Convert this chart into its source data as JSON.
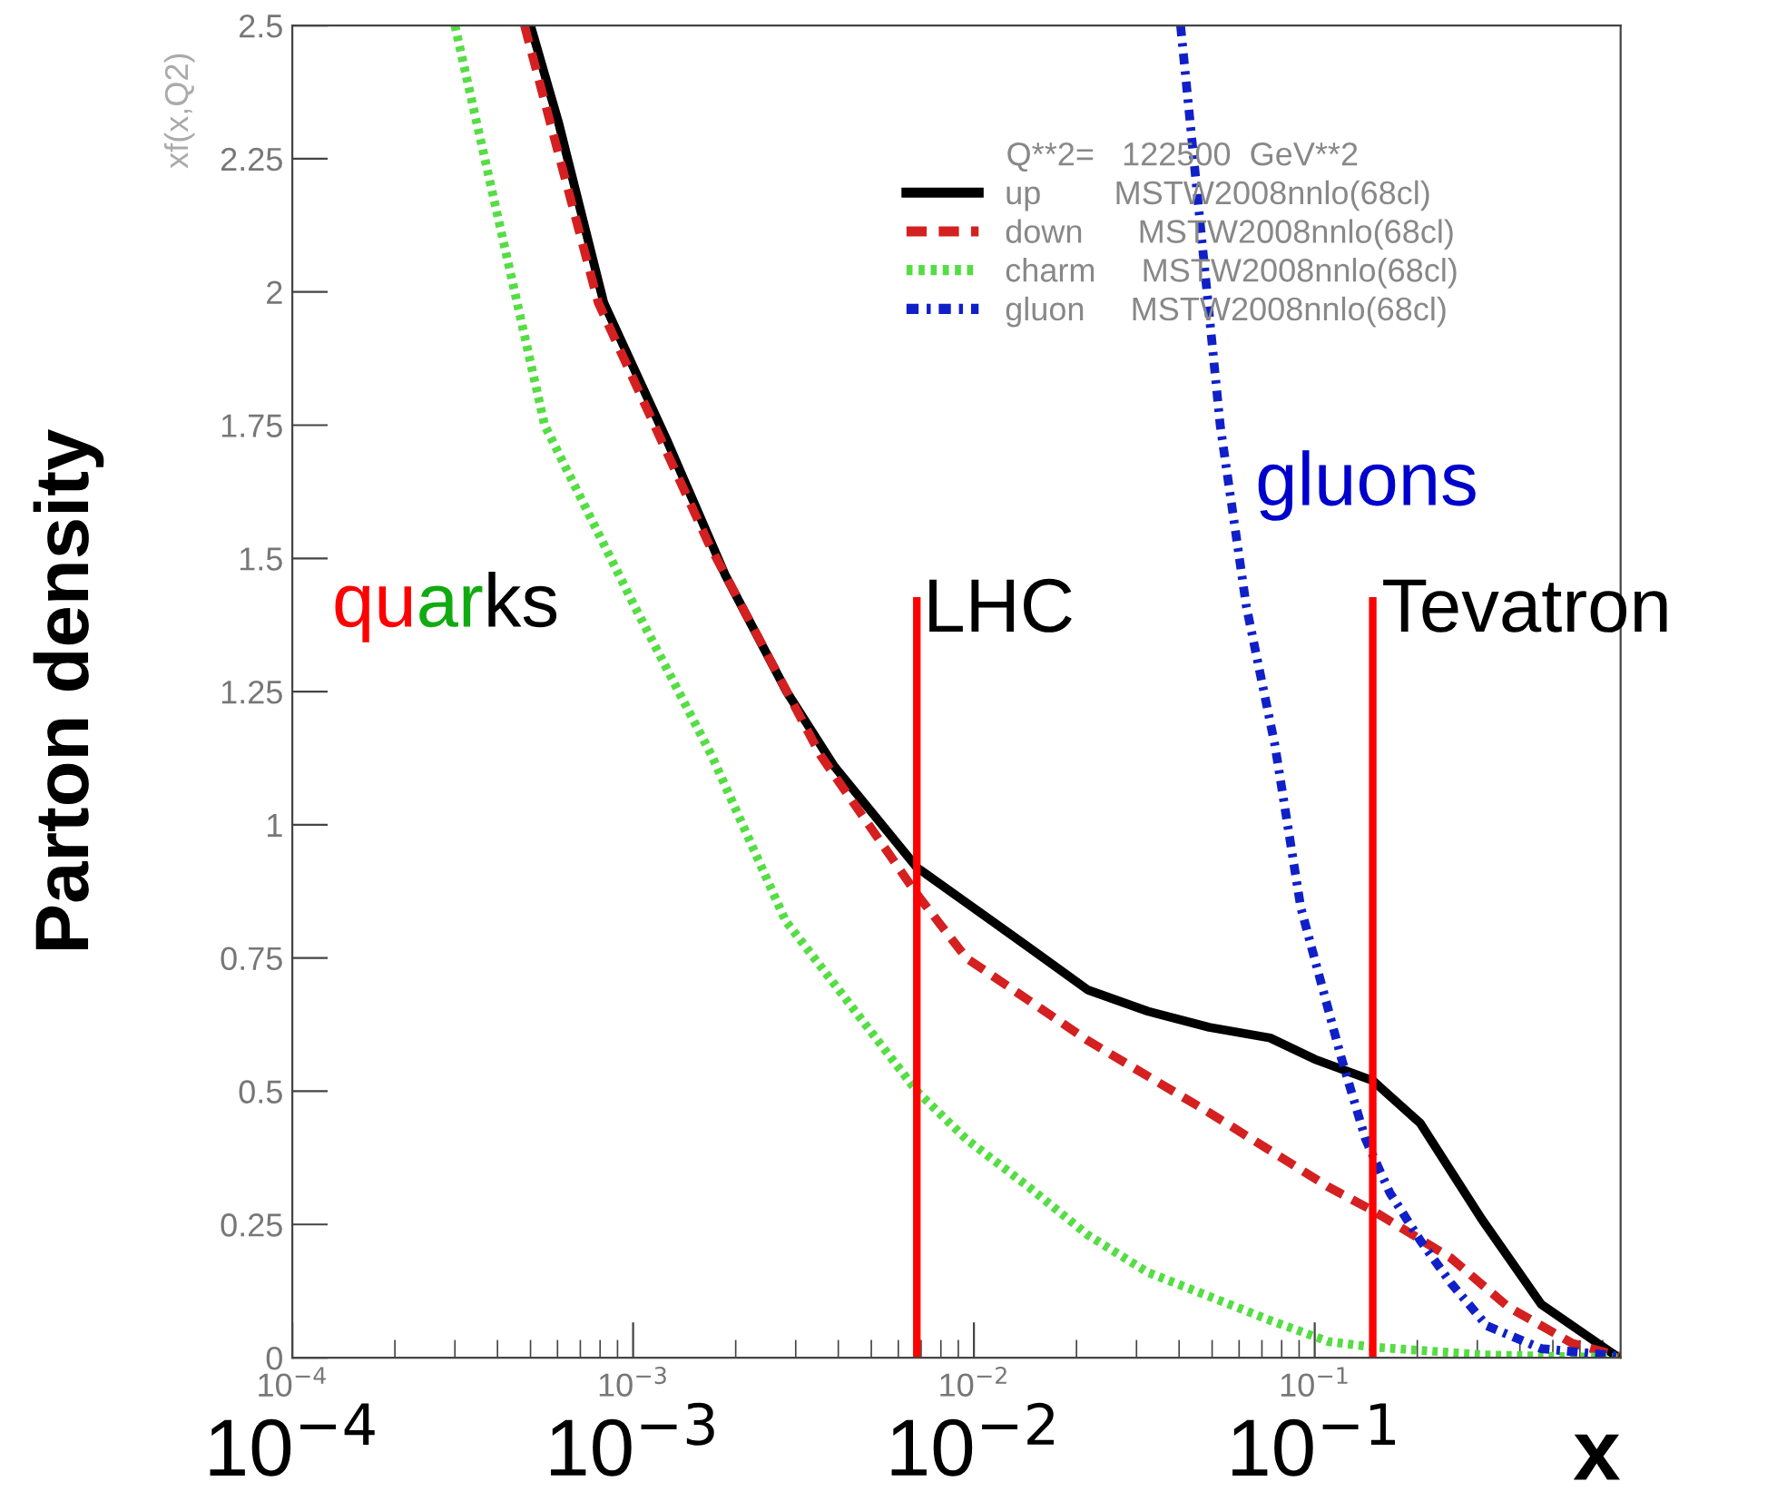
{
  "chart_data": {
    "type": "line",
    "xlabel": "x",
    "ylabel": "Parton density",
    "legend_title": "Q**2=   122500  GeV**2",
    "log": "x",
    "xlim": [
      0.0001,
      0.79
    ],
    "ylim": [
      0,
      2.5
    ],
    "xticks": [
      {
        "value": 0.0001,
        "label": "10$^{−4}$"
      },
      {
        "value": 0.001,
        "label": "10$^{−3}$"
      },
      {
        "value": 0.01,
        "label": "10$^{−2}$"
      },
      {
        "value": 0.1,
        "label": "10$^{−1}$"
      }
    ],
    "yticks": [
      0,
      0.25,
      0.5,
      0.75,
      1,
      1.25,
      1.5,
      1.75,
      2,
      2.25,
      2.5
    ],
    "grid": false,
    "legend": "top right",
    "marker": "none",
    "series": [
      {
        "name": "up        MSTW2008nnlo(68cl)",
        "color": "#000000",
        "line_style": "solid",
        "x": [
          0.0005,
          0.000603,
          0.00082,
          0.00126,
          0.00186,
          0.00282,
          0.00389,
          0.0068,
          0.0145,
          0.0216,
          0.0324,
          0.049,
          0.074,
          0.1,
          0.148,
          0.204,
          0.309,
          0.462,
          0.78
        ],
        "values": [
          2.5,
          2.32,
          1.98,
          1.72,
          1.47,
          1.25,
          1.11,
          0.92,
          0.77,
          0.69,
          0.65,
          0.62,
          0.6,
          0.56,
          0.52,
          0.44,
          0.26,
          0.1,
          0.0
        ]
      },
      {
        "name": "down      MSTW2008nnlo(68cl)",
        "color": "#d42020",
        "line_style": "dashed",
        "x": [
          0.00048,
          0.00057,
          0.00079,
          0.00166,
          0.00355,
          0.0068,
          0.0095,
          0.0216,
          0.049,
          0.11,
          0.148,
          0.251,
          0.37,
          0.57,
          0.78
        ],
        "values": [
          2.5,
          2.32,
          1.98,
          1.53,
          1.13,
          0.87,
          0.75,
          0.595,
          0.46,
          0.32,
          0.276,
          0.187,
          0.095,
          0.027,
          0.003
        ]
      },
      {
        "name": "charm     MSTW2008nnlo(68cl)",
        "color": "#55dd44",
        "line_style": "dotted",
        "x": [
          0.0003,
          0.00055,
          0.00101,
          0.0017,
          0.0028,
          0.0068,
          0.0095,
          0.0145,
          0.0216,
          0.0324,
          0.049,
          0.074,
          0.11,
          0.148,
          0.316,
          0.78
        ],
        "values": [
          2.5,
          1.75,
          1.41,
          1.13,
          0.82,
          0.5,
          0.41,
          0.32,
          0.23,
          0.16,
          0.115,
          0.07,
          0.03,
          0.02,
          0.005,
          0.0
        ]
      },
      {
        "name": "gluon     MSTW2008nnlo(68cl)",
        "color": "#1020c8",
        "line_style": "dashdot",
        "x": [
          0.0404,
          0.0528,
          0.063,
          0.0764,
          0.091,
          0.12,
          0.141,
          0.166,
          0.204,
          0.251,
          0.32,
          0.462,
          0.78
        ],
        "values": [
          2.5,
          1.75,
          1.41,
          1.15,
          0.845,
          0.56,
          0.41,
          0.31,
          0.22,
          0.14,
          0.06,
          0.017,
          0.003
        ]
      },
      {
        "color": "#ff0000",
        "line_style": "solid",
        "x": [
          0.0068,
          0.0068
        ],
        "values": [
          0,
          1.42
        ]
      },
      {
        "color": "#ff0000",
        "line_style": "solid",
        "x": [
          0.148,
          0.148
        ],
        "values": [
          0,
          1.42
        ]
      }
    ],
    "annotations": [
      "xf(x,Q2)",
      "qu",
      "ar",
      "ks",
      "LHC",
      "Tevatron",
      "gluons",
      "10$^{−4}$",
      "10$^{−3}$",
      "10$^{−2}$",
      "10$^{−1}$"
    ]
  }
}
